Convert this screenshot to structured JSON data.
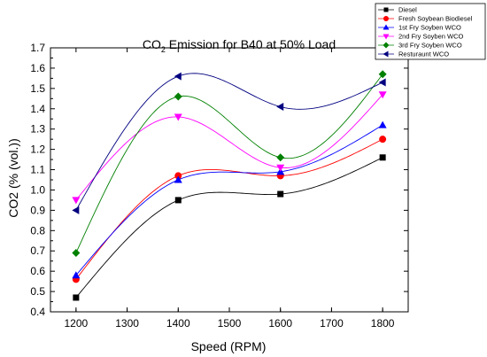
{
  "chart_data": {
    "type": "line",
    "title": {
      "main": "CO",
      "sub": "2",
      "rest": " Emission for B40 at 50% Load"
    },
    "xlabel": "Speed (RPM)",
    "ylabel": "CO2 (% (vol.))",
    "xlim": [
      1150,
      1850
    ],
    "ylim": [
      0.4,
      1.7
    ],
    "xticks": [
      1200,
      1300,
      1400,
      1500,
      1600,
      1700,
      1800
    ],
    "yticks": [
      0.4,
      0.5,
      0.6,
      0.7,
      0.8,
      0.9,
      1.0,
      1.1,
      1.2,
      1.3,
      1.4,
      1.5,
      1.6,
      1.7
    ],
    "x": [
      1200,
      1400,
      1600,
      1800
    ],
    "grid": false,
    "legend_position": "top-right",
    "series": [
      {
        "name": "Diesel",
        "values": [
          0.47,
          0.95,
          0.98,
          1.16
        ],
        "color": "#000000",
        "marker": "square"
      },
      {
        "name": "Fresh Soybean Biodiesel",
        "values": [
          0.56,
          1.07,
          1.07,
          1.25
        ],
        "color": "#ff0000",
        "marker": "circle"
      },
      {
        "name": "1st Fry Soyben WCO",
        "values": [
          0.58,
          1.05,
          1.09,
          1.32
        ],
        "color": "#0000ff",
        "marker": "triangle-up"
      },
      {
        "name": "2nd Fry Soyben WCO",
        "values": [
          0.95,
          1.36,
          1.11,
          1.47
        ],
        "color": "#ff00ff",
        "marker": "triangle-down"
      },
      {
        "name": "3rd Fry Soyben WCO",
        "values": [
          0.69,
          1.46,
          1.16,
          1.57
        ],
        "color": "#008000",
        "marker": "diamond"
      },
      {
        "name": "Resturaunt WCO",
        "values": [
          0.9,
          1.56,
          1.41,
          1.53
        ],
        "color": "#000080",
        "marker": "triangle-left"
      }
    ]
  }
}
